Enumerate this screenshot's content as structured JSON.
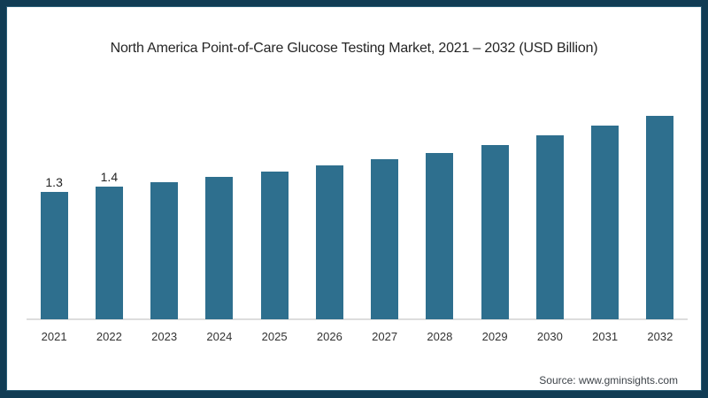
{
  "frame": {
    "background": "#ffffff",
    "border_color": "#113c54"
  },
  "chart_data": {
    "type": "bar",
    "title": "North America Point-of-Care Glucose Testing Market, 2021 – 2032 (USD Billion)",
    "unit": "USD Billion",
    "categories": [
      "2021",
      "2022",
      "2023",
      "2024",
      "2025",
      "2026",
      "2027",
      "2028",
      "2029",
      "2030",
      "2031",
      "2032"
    ],
    "values": [
      1.3,
      1.35,
      1.4,
      1.45,
      1.51,
      1.57,
      1.63,
      1.7,
      1.78,
      1.88,
      1.98,
      2.08
    ],
    "bar_labels": [
      "1.3",
      "1.4",
      "",
      "",
      "",
      "",
      "",
      "",
      "",
      "",
      "",
      ""
    ],
    "bar_color": "#2e6f8e",
    "xlabel": "",
    "ylabel": "",
    "ylim": [
      0,
      2.3
    ],
    "grid": false,
    "legend": false,
    "y_axis_shown": false,
    "x_axis_line_color": "#dddddd"
  },
  "footer": {
    "source_label": "Source: www.gminsights.com"
  }
}
